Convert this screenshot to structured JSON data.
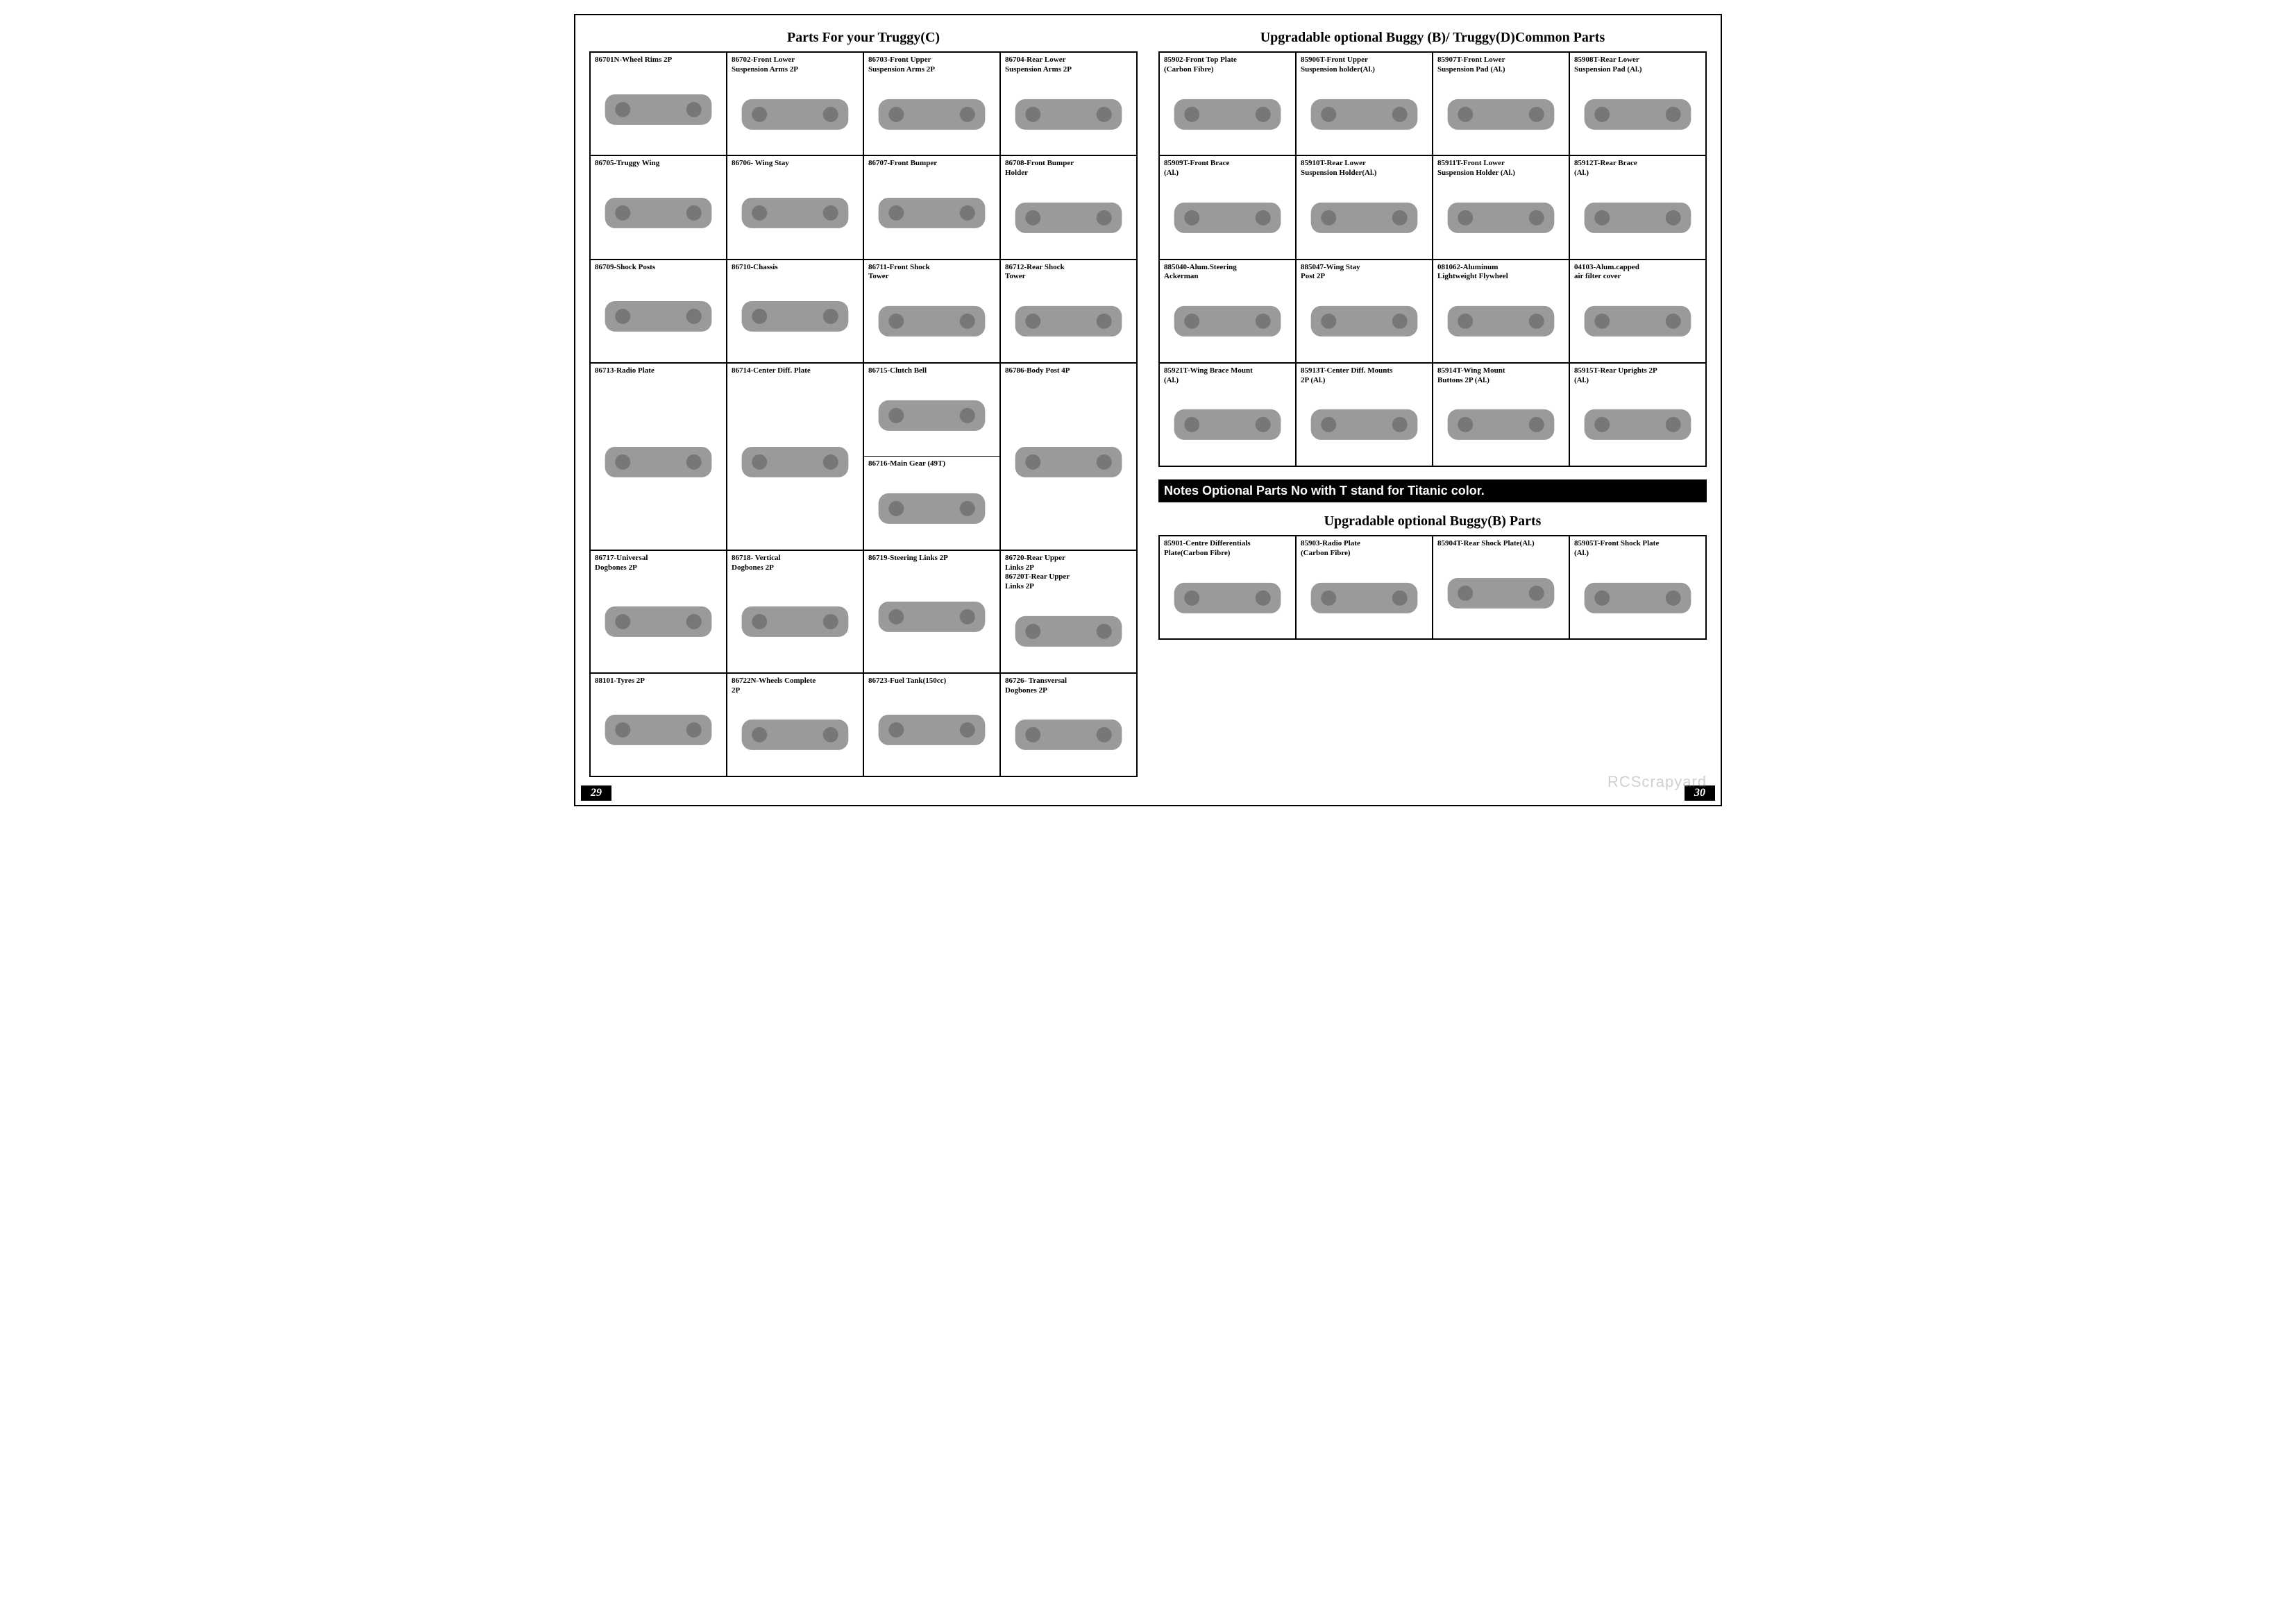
{
  "watermark": "RCScrapyard",
  "pageLeftNum": "29",
  "pageRightNum": "30",
  "left": {
    "title": "Parts For your Truggy(C)",
    "rows": [
      [
        {
          "label": "86701N-Wheel Rims   2P"
        },
        {
          "label": "86702-Front Lower\n          Suspension Arms   2P"
        },
        {
          "label": "86703-Front Upper\n          Suspension Arms   2P"
        },
        {
          "label": "86704-Rear Lower\n          Suspension Arms   2P"
        }
      ],
      [
        {
          "label": "86705-Truggy Wing"
        },
        {
          "label": "86706- Wing Stay"
        },
        {
          "label": "86707-Front Bumper"
        },
        {
          "label": "86708-Front Bumper\n          Holder"
        }
      ],
      [
        {
          "label": "86709-Shock  Posts"
        },
        {
          "label": "86710-Chassis"
        },
        {
          "label": "86711-Front Shock\n          Tower"
        },
        {
          "label": "86712-Rear  Shock\n          Tower"
        }
      ],
      [
        {
          "label": "86713-Radio Plate"
        },
        {
          "label": "86714-Center Diff. Plate"
        },
        {
          "split": [
            {
              "label": "86715-Clutch Bell"
            },
            {
              "label": "86716-Main Gear   (49T)"
            }
          ]
        },
        {
          "label": "86786-Body Post        4P"
        }
      ],
      [
        {
          "label": "86717-Universal\n          Dogbones     2P"
        },
        {
          "label": "86718- Vertical\n          Dogbones     2P"
        },
        {
          "label": "86719-Steering Links  2P"
        },
        {
          "label": "86720-Rear Upper\n          Links  2P\n86720T-Rear Upper\n          Links  2P"
        }
      ],
      [
        {
          "label": "88101-Tyres           2P"
        },
        {
          "label": "86722N-Wheels  Complete\n                               2P"
        },
        {
          "label": "86723-Fuel Tank(150cc)"
        },
        {
          "label": "86726- Transversal\n          Dogbones  2P"
        }
      ]
    ]
  },
  "right": {
    "title1": "Upgradable  optional  Buggy (B)/ Truggy(D)Common Parts",
    "rows1": [
      [
        {
          "label": "85902-Front Top Plate\n         (Carbon Fibre)"
        },
        {
          "label": "85906T-Front Upper\n     Suspension holder(Al.)"
        },
        {
          "label": "85907T-Front Lower\n     Suspension Pad (Al.)"
        },
        {
          "label": "85908T-Rear Lower\n     Suspension Pad (Al.)"
        }
      ],
      [
        {
          "label": "85909T-Front Brace\n                                    (Al.)"
        },
        {
          "label": "85910T-Rear Lower\n     Suspension Holder(Al.)"
        },
        {
          "label": "85911T-Front Lower\n     Suspension Holder (Al.)"
        },
        {
          "label": "85912T-Rear Brace\n                                    (Al.)"
        }
      ],
      [
        {
          "label": "885040-Alum.Steering\n               Ackerman"
        },
        {
          "label": "885047-Wing Stay\n          Post           2P"
        },
        {
          "label": "081062-Aluminum\n     Lightweight Flywheel"
        },
        {
          "label": "04103-Alum.capped\n          air filter cover"
        }
      ],
      [
        {
          "label": "85921T-Wing Brace Mount\n                                   (Al.)"
        },
        {
          "label": "85913T-Center Diff. Mounts\n                        2P (Al.)"
        },
        {
          "label": "85914T-Wing Mount\n        Buttons  2P  (Al.)"
        },
        {
          "label": "85915T-Rear Uprights  2P\n                                   (Al.)"
        }
      ]
    ],
    "note": "Notes Optional Parts No with T stand for Titanic color.",
    "title2": "Upgradable  optional Buggy(B) Parts",
    "rows2": [
      [
        {
          "label": "85901-Centre Differentials\n        Plate(Carbon Fibre)"
        },
        {
          "label": "85903-Radio Plate\n          (Carbon Fibre)"
        },
        {
          "label": "85904T-Rear Shock Plate(Al.)"
        },
        {
          "label": "85905T-Front Shock Plate\n                                  (Al.)"
        }
      ]
    ]
  }
}
